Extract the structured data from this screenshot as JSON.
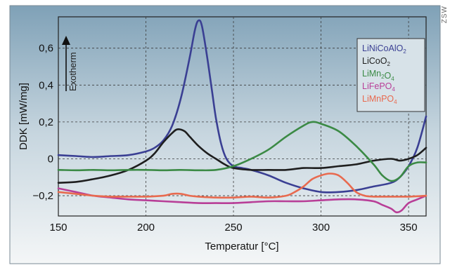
{
  "watermark": "ZSW",
  "annotation": "Exotherm",
  "chart_data": {
    "type": "line",
    "xlabel": "Temperatur [°C]",
    "ylabel": "DDK [mW/mg]",
    "xlim": [
      150,
      360
    ],
    "ylim": [
      -0.31,
      0.77
    ],
    "xticks": [
      150,
      200,
      250,
      300,
      350
    ],
    "yticks": [
      -0.2,
      0,
      0.2,
      0.4,
      0.6
    ],
    "ytick_labels": [
      "−0,2",
      "0",
      "0,2",
      "0,4",
      "0,6"
    ],
    "grid": true,
    "legend_position": "top-right",
    "series": [
      {
        "name": "LiNiCoAlO2",
        "color": "#3a3f93",
        "x": [
          150,
          160,
          170,
          180,
          190,
          200,
          205,
          210,
          215,
          220,
          225,
          228,
          230,
          232,
          235,
          238,
          240,
          243,
          246,
          250,
          255,
          260,
          270,
          280,
          290,
          300,
          310,
          320,
          330,
          340,
          345,
          350,
          355,
          360
        ],
        "y": [
          0.02,
          0.015,
          0.01,
          0.015,
          0.02,
          0.04,
          0.06,
          0.1,
          0.18,
          0.33,
          0.55,
          0.7,
          0.75,
          0.72,
          0.55,
          0.35,
          0.22,
          0.08,
          0.0,
          -0.04,
          -0.05,
          -0.06,
          -0.09,
          -0.13,
          -0.16,
          -0.18,
          -0.18,
          -0.17,
          -0.15,
          -0.13,
          -0.1,
          -0.04,
          0.06,
          0.23
        ]
      },
      {
        "name": "LiCoO2",
        "color": "#1e1e1e",
        "x": [
          150,
          160,
          170,
          180,
          190,
          200,
          205,
          210,
          215,
          218,
          222,
          225,
          230,
          235,
          240,
          245,
          250,
          260,
          270,
          280,
          290,
          300,
          310,
          320,
          330,
          340,
          345,
          350,
          355,
          360
        ],
        "y": [
          -0.13,
          -0.125,
          -0.11,
          -0.09,
          -0.06,
          -0.01,
          0.03,
          0.09,
          0.14,
          0.16,
          0.15,
          0.12,
          0.07,
          0.03,
          0.0,
          -0.03,
          -0.05,
          -0.06,
          -0.06,
          -0.06,
          -0.05,
          -0.05,
          -0.04,
          -0.03,
          -0.01,
          0.0,
          -0.01,
          0.0,
          0.02,
          0.06
        ]
      },
      {
        "name": "LiMn2O4",
        "color": "#3b8a45",
        "x": [
          150,
          160,
          170,
          180,
          190,
          200,
          210,
          220,
          230,
          240,
          250,
          260,
          270,
          280,
          290,
          295,
          300,
          310,
          320,
          330,
          335,
          340,
          345,
          350,
          355,
          360
        ],
        "y": [
          -0.06,
          -0.062,
          -0.06,
          -0.062,
          -0.06,
          -0.06,
          -0.062,
          -0.06,
          -0.062,
          -0.06,
          -0.04,
          0.0,
          0.05,
          0.12,
          0.18,
          0.2,
          0.19,
          0.15,
          0.07,
          -0.03,
          -0.09,
          -0.12,
          -0.1,
          -0.04,
          -0.02,
          -0.02
        ]
      },
      {
        "name": "LiFePO4",
        "color": "#b83e97",
        "x": [
          150,
          160,
          170,
          180,
          190,
          200,
          210,
          220,
          230,
          240,
          250,
          260,
          270,
          280,
          290,
          300,
          310,
          320,
          330,
          335,
          340,
          343,
          346,
          350,
          355,
          360
        ],
        "y": [
          -0.16,
          -0.18,
          -0.2,
          -0.21,
          -0.22,
          -0.225,
          -0.23,
          -0.235,
          -0.24,
          -0.24,
          -0.24,
          -0.235,
          -0.23,
          -0.23,
          -0.23,
          -0.225,
          -0.22,
          -0.22,
          -0.23,
          -0.25,
          -0.27,
          -0.29,
          -0.28,
          -0.24,
          -0.22,
          -0.2
        ]
      },
      {
        "name": "LiMnPO4",
        "color": "#e86a4f",
        "x": [
          150,
          160,
          170,
          180,
          190,
          200,
          210,
          215,
          220,
          225,
          230,
          240,
          250,
          260,
          270,
          280,
          285,
          290,
          295,
          300,
          305,
          310,
          315,
          320,
          325,
          330,
          340,
          350,
          360
        ],
        "y": [
          -0.18,
          -0.19,
          -0.2,
          -0.205,
          -0.205,
          -0.205,
          -0.2,
          -0.19,
          -0.19,
          -0.2,
          -0.205,
          -0.21,
          -0.21,
          -0.205,
          -0.21,
          -0.2,
          -0.18,
          -0.15,
          -0.11,
          -0.09,
          -0.08,
          -0.09,
          -0.13,
          -0.18,
          -0.2,
          -0.205,
          -0.205,
          -0.205,
          -0.2
        ]
      }
    ]
  }
}
